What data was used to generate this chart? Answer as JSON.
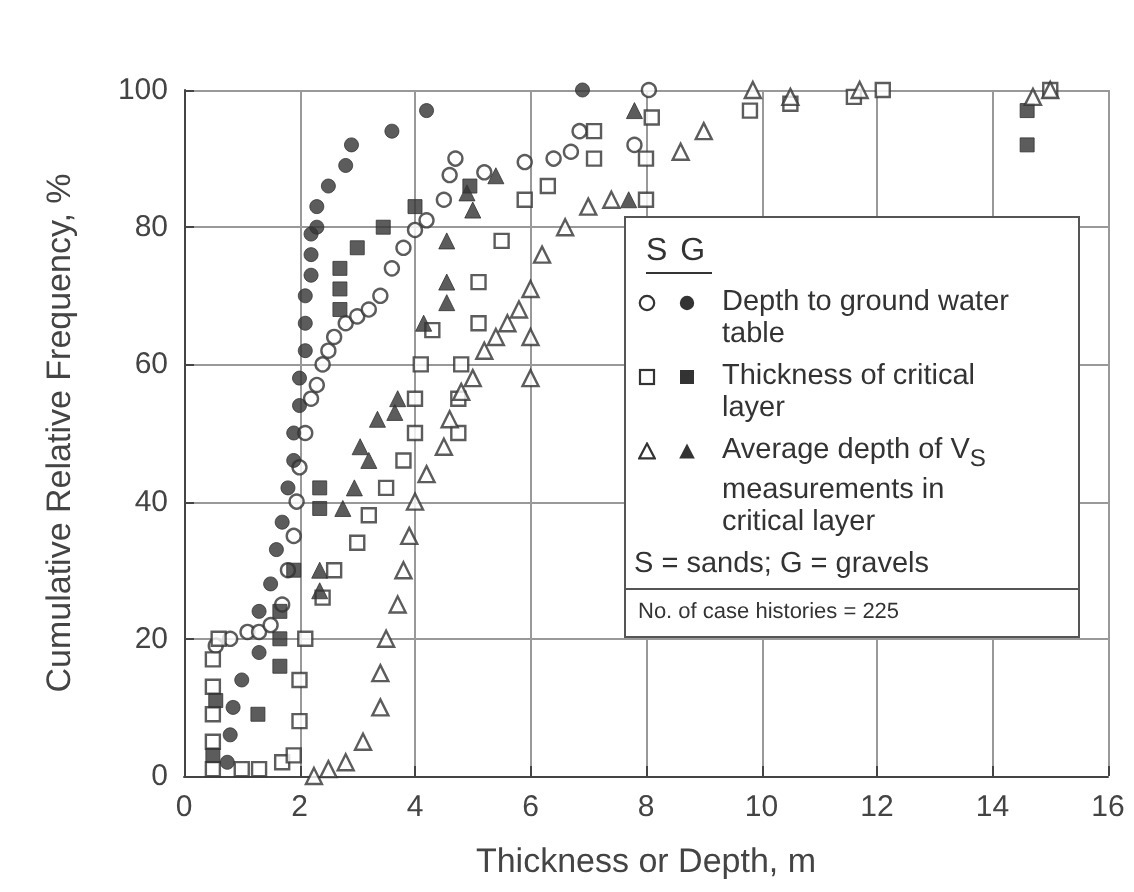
{
  "chart_data": {
    "type": "scatter",
    "xlabel": "Thickness or Depth, m",
    "ylabel": "Cumulative Relative Frequency, %",
    "xlim": [
      0,
      16
    ],
    "xticks": [
      0,
      2,
      4,
      6,
      8,
      10,
      12,
      14,
      16
    ],
    "ylim": [
      0,
      100
    ],
    "yticks": [
      0,
      20,
      40,
      60,
      80,
      100
    ],
    "grid": true,
    "legend": "right",
    "legend_title": "S  G",
    "annotations": [
      "S = sands; G = gravels",
      "No. of case histories = 225"
    ],
    "series": [
      {
        "color": "#333333",
        "marker": "circle",
        "x": [
          0.55,
          0.8,
          1.1,
          1.3,
          1.5,
          1.7,
          1.8,
          1.9,
          1.95,
          2.0,
          2.1,
          2.2,
          2.3,
          2.4,
          2.5,
          2.6,
          2.8,
          3.0,
          3.2,
          3.4,
          3.6,
          3.8,
          4.0,
          4.2,
          4.5,
          4.6,
          4.7,
          5.2,
          5.9,
          6.4,
          6.7,
          6.85,
          7.8,
          8.05
        ],
        "values": [
          19,
          20,
          21,
          21,
          22,
          25,
          30,
          35,
          40,
          45,
          50,
          55,
          57,
          60,
          62,
          64,
          66,
          67,
          68,
          70,
          74,
          77,
          79.6,
          81,
          84,
          87.6,
          90,
          88,
          89.5,
          90,
          91,
          94,
          92,
          100
        ]
      },
      {
        "name": "Depth to ground water table",
        "color": "#333333",
        "marker": "circle",
        "x": [
          0.75,
          0.8,
          0.85,
          1.0,
          1.3,
          1.3,
          1.5,
          1.6,
          1.7,
          1.8,
          1.9,
          1.9,
          2.0,
          2.0,
          2.1,
          2.1,
          2.1,
          2.2,
          2.2,
          2.2,
          2.3,
          2.3,
          2.5,
          2.8,
          2.9,
          3.6,
          4.2,
          6.9
        ],
        "values": [
          2,
          6,
          10,
          14,
          18,
          24,
          28,
          33,
          37,
          42,
          46,
          50,
          54,
          58,
          62,
          66,
          70,
          73,
          76,
          79,
          80,
          83,
          86,
          89,
          92,
          94,
          97,
          100
        ]
      },
      {
        "color": "#333333",
        "marker": "square",
        "x": [
          0.5,
          0.5,
          0.5,
          0.5,
          0.5,
          0.6,
          1.0,
          1.3,
          1.7,
          1.9,
          2.0,
          2.0,
          2.1,
          2.4,
          2.6,
          3.0,
          3.2,
          3.5,
          3.8,
          4.0,
          4.0,
          4.1,
          4.3,
          4.75,
          4.75,
          4.8,
          5.1,
          5.1,
          5.5,
          5.9,
          6.3,
          7.1,
          7.1,
          8.0,
          8.0,
          8.1,
          9.8,
          10.5,
          11.6,
          12.1,
          15.0
        ],
        "values": [
          1,
          5,
          9,
          13,
          17,
          20,
          1,
          1,
          2,
          3,
          8,
          14,
          20,
          26,
          30,
          34,
          38,
          42,
          46,
          50,
          55,
          60,
          65,
          50,
          55,
          60,
          66,
          72,
          78,
          84,
          86,
          90,
          94,
          84,
          90,
          96,
          97,
          98,
          99,
          100,
          100
        ]
      },
      {
        "name": "Thickness of critical layer",
        "color": "#333333",
        "marker": "square",
        "x": [
          0.5,
          0.55,
          1.28,
          1.66,
          1.66,
          1.66,
          1.9,
          2.35,
          2.35,
          2.7,
          2.7,
          2.7,
          3.0,
          3.45,
          4.0,
          4.95,
          14.6,
          14.6
        ],
        "values": [
          3,
          11,
          9,
          16,
          20,
          24,
          30,
          39,
          42,
          68,
          71,
          74,
          77,
          80,
          83,
          86,
          92,
          97
        ]
      },
      {
        "color": "#333333",
        "marker": "triangle",
        "x": [
          2.25,
          2.5,
          2.8,
          3.1,
          3.4,
          3.4,
          3.5,
          3.7,
          3.8,
          3.9,
          4.0,
          4.2,
          4.5,
          4.6,
          4.8,
          5.0,
          5.2,
          5.4,
          5.6,
          5.8,
          6.0,
          6.0,
          6.0,
          6.2,
          6.6,
          7.0,
          7.4,
          8.6,
          9.0,
          9.85,
          10.5,
          11.7,
          14.7,
          15.0
        ],
        "values": [
          0,
          1,
          2,
          5,
          10,
          15,
          20,
          25,
          30,
          35,
          40,
          44,
          48,
          52,
          56,
          58,
          62,
          64,
          66,
          68,
          58,
          64,
          71,
          76,
          80,
          83,
          84,
          91,
          94,
          100,
          99,
          100,
          99,
          100
        ]
      },
      {
        "name": "Average depth of V$_{S}$ measurements in critical layer",
        "color": "#333333",
        "marker": "triangle",
        "x": [
          2.35,
          2.35,
          2.75,
          2.95,
          3.05,
          3.2,
          3.35,
          3.65,
          3.7,
          4.15,
          4.55,
          4.55,
          4.55,
          4.9,
          5.0,
          5.4,
          7.7,
          7.8
        ],
        "values": [
          27,
          30,
          39,
          42,
          48,
          46,
          52,
          53,
          55,
          66,
          69,
          72,
          78,
          85,
          82.5,
          87.5,
          84,
          97
        ]
      }
    ]
  }
}
